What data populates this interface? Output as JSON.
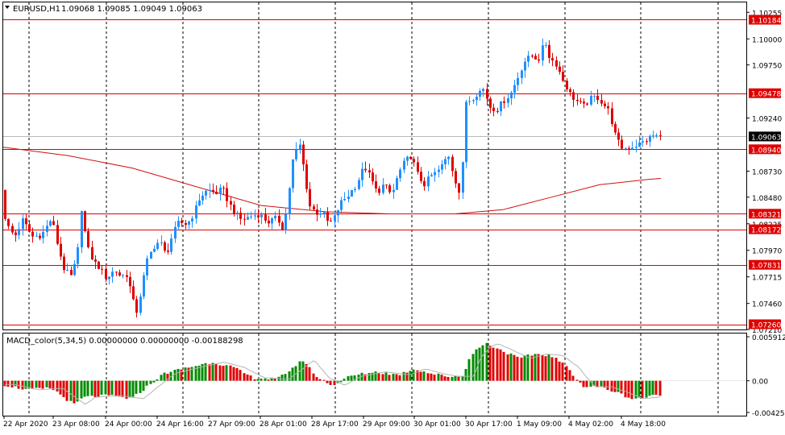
{
  "header": {
    "symbol_label": "EURUSD,H1",
    "ohlc": "1.09068 1.09085 1.09049 1.09063"
  },
  "indicator": {
    "label": "MACD_color(5,34,5) 0.00000000 0.00000000 -0.00188298",
    "ticks": [
      "0.0059122",
      "0.00",
      "-0.004252"
    ]
  },
  "price_axis": {
    "ticks": [
      "1.10255",
      "1.10000",
      "1.09750",
      "1.09240",
      "1.08730",
      "1.08480",
      "1.08225",
      "1.07970",
      "1.07715",
      "1.07460",
      "1.07210"
    ]
  },
  "levels": [
    {
      "label": "1.10184",
      "value": 1.10184
    },
    {
      "label": "1.09478",
      "value": 1.09478
    },
    {
      "label": "1.08940",
      "value": 1.0894
    },
    {
      "label": "1.08321",
      "value": 1.08321
    },
    {
      "label": "1.08172",
      "value": 1.08172
    },
    {
      "label": "1.07831",
      "value": 1.07831
    },
    {
      "label": "1.07260",
      "value": 1.0726
    }
  ],
  "current_price": {
    "label": "1.09063",
    "value": 1.09063
  },
  "time_axis": {
    "labels": [
      "22 Apr 2020",
      "23 Apr 08:00",
      "24 Apr 00:00",
      "24 Apr 16:00",
      "27 Apr 09:00",
      "28 Apr 01:00",
      "28 Apr 17:00",
      "29 Apr 09:00",
      "30 Apr 01:00",
      "30 Apr 17:00",
      "1 May 09:00",
      "4 May 02:00",
      "4 May 18:00"
    ]
  },
  "colors": {
    "bull": "#1e90ff",
    "bear": "#e00000",
    "level": "#e00000",
    "ma": "#d01010",
    "macd_pos": "#008c00",
    "macd_neg": "#e00000",
    "signal": "#b4b4b4",
    "grid": "#000000"
  },
  "chart_data": [
    {
      "type": "candlestick",
      "symbol": "EURUSD",
      "timeframe": "H1",
      "ylim": [
        1.0721,
        1.1035
      ],
      "path": [
        [
          0,
          1.0855
        ],
        [
          8,
          1.0822
        ],
        [
          18,
          1.081
        ],
        [
          28,
          1.0826
        ],
        [
          40,
          1.081
        ],
        [
          52,
          1.0812
        ],
        [
          64,
          1.0828
        ],
        [
          72,
          1.08
        ],
        [
          80,
          1.0778
        ],
        [
          88,
          1.0772
        ],
        [
          96,
          1.079
        ],
        [
          100,
          1.0842
        ],
        [
          108,
          1.08
        ],
        [
          116,
          1.0786
        ],
        [
          124,
          1.078
        ],
        [
          132,
          1.077
        ],
        [
          142,
          1.0778
        ],
        [
          150,
          1.0772
        ],
        [
          158,
          1.0774
        ],
        [
          164,
          1.075
        ],
        [
          170,
          1.0738
        ],
        [
          176,
          1.0762
        ],
        [
          182,
          1.0786
        ],
        [
          190,
          1.08
        ],
        [
          198,
          1.0806
        ],
        [
          206,
          1.0792
        ],
        [
          214,
          1.0812
        ],
        [
          222,
          1.0824
        ],
        [
          232,
          1.0822
        ],
        [
          240,
          1.0832
        ],
        [
          248,
          1.0848
        ],
        [
          258,
          1.0855
        ],
        [
          268,
          1.0852
        ],
        [
          276,
          1.0856
        ],
        [
          284,
          1.0842
        ],
        [
          292,
          1.0832
        ],
        [
          300,
          1.0826
        ],
        [
          312,
          1.083
        ],
        [
          322,
          1.0832
        ],
        [
          332,
          1.0824
        ],
        [
          344,
          1.0828
        ],
        [
          352,
          1.0816
        ],
        [
          358,
          1.0852
        ],
        [
          364,
          1.0888
        ],
        [
          372,
          1.0898
        ],
        [
          378,
          1.087
        ],
        [
          384,
          1.084
        ],
        [
          392,
          1.0833
        ],
        [
          400,
          1.0834
        ],
        [
          408,
          1.0822
        ],
        [
          414,
          1.0827
        ],
        [
          422,
          1.0842
        ],
        [
          432,
          1.085
        ],
        [
          442,
          1.086
        ],
        [
          452,
          1.0878
        ],
        [
          460,
          1.0866
        ],
        [
          468,
          1.0852
        ],
        [
          476,
          1.086
        ],
        [
          486,
          1.085
        ],
        [
          494,
          1.087
        ],
        [
          502,
          1.0882
        ],
        [
          510,
          1.0888
        ],
        [
          518,
          1.087
        ],
        [
          526,
          1.086
        ],
        [
          534,
          1.0868
        ],
        [
          542,
          1.0872
        ],
        [
          550,
          1.088
        ],
        [
          556,
          1.089
        ],
        [
          562,
          1.0872
        ],
        [
          570,
          1.0852
        ],
        [
          574,
          1.088
        ],
        [
          578,
          1.094
        ],
        [
          584,
          1.0942
        ],
        [
          592,
          1.0948
        ],
        [
          600,
          1.0952
        ],
        [
          608,
          1.0935
        ],
        [
          616,
          1.0932
        ],
        [
          624,
          1.094
        ],
        [
          634,
          1.0948
        ],
        [
          642,
          1.0962
        ],
        [
          650,
          1.0978
        ],
        [
          660,
          1.0984
        ],
        [
          668,
          1.098
        ],
        [
          676,
          1.0998
        ],
        [
          682,
          1.0982
        ],
        [
          690,
          1.0976
        ],
        [
          700,
          1.0958
        ],
        [
          708,
          1.0946
        ],
        [
          716,
          1.094
        ],
        [
          724,
          1.0935
        ],
        [
          732,
          1.0942
        ],
        [
          740,
          1.0945
        ],
        [
          748,
          1.0938
        ],
        [
          756,
          1.093
        ],
        [
          762,
          1.091
        ],
        [
          770,
          1.0896
        ],
        [
          776,
          1.0895
        ],
        [
          786,
          1.0897
        ],
        [
          796,
          1.09
        ],
        [
          804,
          1.0904
        ],
        [
          812,
          1.0908
        ],
        [
          816,
          1.0906
        ]
      ]
    },
    {
      "type": "line",
      "name": "moving-average",
      "path": [
        [
          0,
          1.0896
        ],
        [
          80,
          1.0888
        ],
        [
          160,
          1.0876
        ],
        [
          240,
          1.0858
        ],
        [
          320,
          1.084
        ],
        [
          400,
          1.0834
        ],
        [
          480,
          1.0832
        ],
        [
          560,
          1.0832
        ],
        [
          620,
          1.0836
        ],
        [
          680,
          1.0848
        ],
        [
          740,
          1.086
        ],
        [
          800,
          1.0865
        ],
        [
          816,
          1.0866
        ]
      ]
    },
    {
      "type": "bar",
      "name": "MACD_color(5,34,5)",
      "ylim": [
        -0.004252,
        0.0059122
      ],
      "path": [
        [
          0,
          -0.0005
        ],
        [
          30,
          -0.0012
        ],
        [
          60,
          -0.001
        ],
        [
          88,
          -0.0032
        ],
        [
          100,
          -0.0022
        ],
        [
          130,
          -0.002
        ],
        [
          160,
          -0.0024
        ],
        [
          185,
          -0.0002
        ],
        [
          200,
          0.001
        ],
        [
          230,
          0.0018
        ],
        [
          260,
          0.0025
        ],
        [
          285,
          0.0018
        ],
        [
          310,
          0.0004
        ],
        [
          340,
          0.0002
        ],
        [
          360,
          0.0018
        ],
        [
          372,
          0.0028
        ],
        [
          390,
          0.0004
        ],
        [
          410,
          -0.0006
        ],
        [
          430,
          0.0006
        ],
        [
          460,
          0.0012
        ],
        [
          490,
          0.0008
        ],
        [
          510,
          0.0016
        ],
        [
          530,
          0.001
        ],
        [
          550,
          0.0006
        ],
        [
          570,
          0.0006
        ],
        [
          578,
          0.003
        ],
        [
          590,
          0.0045
        ],
        [
          600,
          0.005
        ],
        [
          620,
          0.004
        ],
        [
          640,
          0.003
        ],
        [
          660,
          0.0036
        ],
        [
          680,
          0.0034
        ],
        [
          700,
          0.0018
        ],
        [
          720,
          -0.0008
        ],
        [
          740,
          -0.0008
        ],
        [
          760,
          -0.0015
        ],
        [
          780,
          -0.0024
        ],
        [
          800,
          -0.0022
        ],
        [
          815,
          -0.0018
        ]
      ]
    }
  ]
}
